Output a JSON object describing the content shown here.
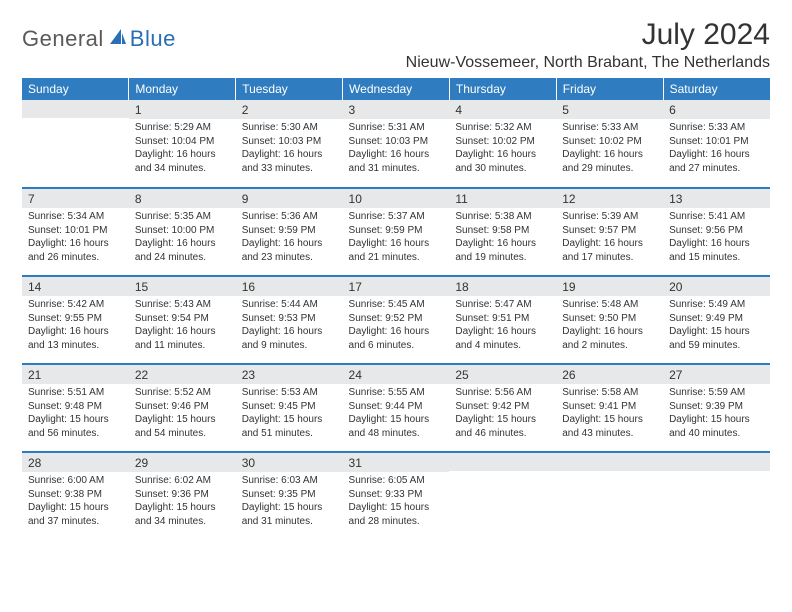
{
  "brand": {
    "word1": "General",
    "word2": "Blue",
    "accent_color": "#2a6fb5",
    "text_color": "#5a5a5a"
  },
  "title": "July 2024",
  "location": "Nieuw-Vossemeer, North Brabant, The Netherlands",
  "header_bg": "#2f7dc0",
  "header_fg": "#ffffff",
  "daynum_bg": "#e7e8e9",
  "row_border": "#2f7dc0",
  "weekdays": [
    "Sunday",
    "Monday",
    "Tuesday",
    "Wednesday",
    "Thursday",
    "Friday",
    "Saturday"
  ],
  "weeks": [
    [
      null,
      {
        "d": "1",
        "sr": "Sunrise: 5:29 AM",
        "ss": "Sunset: 10:04 PM",
        "dl1": "Daylight: 16 hours",
        "dl2": "and 34 minutes."
      },
      {
        "d": "2",
        "sr": "Sunrise: 5:30 AM",
        "ss": "Sunset: 10:03 PM",
        "dl1": "Daylight: 16 hours",
        "dl2": "and 33 minutes."
      },
      {
        "d": "3",
        "sr": "Sunrise: 5:31 AM",
        "ss": "Sunset: 10:03 PM",
        "dl1": "Daylight: 16 hours",
        "dl2": "and 31 minutes."
      },
      {
        "d": "4",
        "sr": "Sunrise: 5:32 AM",
        "ss": "Sunset: 10:02 PM",
        "dl1": "Daylight: 16 hours",
        "dl2": "and 30 minutes."
      },
      {
        "d": "5",
        "sr": "Sunrise: 5:33 AM",
        "ss": "Sunset: 10:02 PM",
        "dl1": "Daylight: 16 hours",
        "dl2": "and 29 minutes."
      },
      {
        "d": "6",
        "sr": "Sunrise: 5:33 AM",
        "ss": "Sunset: 10:01 PM",
        "dl1": "Daylight: 16 hours",
        "dl2": "and 27 minutes."
      }
    ],
    [
      {
        "d": "7",
        "sr": "Sunrise: 5:34 AM",
        "ss": "Sunset: 10:01 PM",
        "dl1": "Daylight: 16 hours",
        "dl2": "and 26 minutes."
      },
      {
        "d": "8",
        "sr": "Sunrise: 5:35 AM",
        "ss": "Sunset: 10:00 PM",
        "dl1": "Daylight: 16 hours",
        "dl2": "and 24 minutes."
      },
      {
        "d": "9",
        "sr": "Sunrise: 5:36 AM",
        "ss": "Sunset: 9:59 PM",
        "dl1": "Daylight: 16 hours",
        "dl2": "and 23 minutes."
      },
      {
        "d": "10",
        "sr": "Sunrise: 5:37 AM",
        "ss": "Sunset: 9:59 PM",
        "dl1": "Daylight: 16 hours",
        "dl2": "and 21 minutes."
      },
      {
        "d": "11",
        "sr": "Sunrise: 5:38 AM",
        "ss": "Sunset: 9:58 PM",
        "dl1": "Daylight: 16 hours",
        "dl2": "and 19 minutes."
      },
      {
        "d": "12",
        "sr": "Sunrise: 5:39 AM",
        "ss": "Sunset: 9:57 PM",
        "dl1": "Daylight: 16 hours",
        "dl2": "and 17 minutes."
      },
      {
        "d": "13",
        "sr": "Sunrise: 5:41 AM",
        "ss": "Sunset: 9:56 PM",
        "dl1": "Daylight: 16 hours",
        "dl2": "and 15 minutes."
      }
    ],
    [
      {
        "d": "14",
        "sr": "Sunrise: 5:42 AM",
        "ss": "Sunset: 9:55 PM",
        "dl1": "Daylight: 16 hours",
        "dl2": "and 13 minutes."
      },
      {
        "d": "15",
        "sr": "Sunrise: 5:43 AM",
        "ss": "Sunset: 9:54 PM",
        "dl1": "Daylight: 16 hours",
        "dl2": "and 11 minutes."
      },
      {
        "d": "16",
        "sr": "Sunrise: 5:44 AM",
        "ss": "Sunset: 9:53 PM",
        "dl1": "Daylight: 16 hours",
        "dl2": "and 9 minutes."
      },
      {
        "d": "17",
        "sr": "Sunrise: 5:45 AM",
        "ss": "Sunset: 9:52 PM",
        "dl1": "Daylight: 16 hours",
        "dl2": "and 6 minutes."
      },
      {
        "d": "18",
        "sr": "Sunrise: 5:47 AM",
        "ss": "Sunset: 9:51 PM",
        "dl1": "Daylight: 16 hours",
        "dl2": "and 4 minutes."
      },
      {
        "d": "19",
        "sr": "Sunrise: 5:48 AM",
        "ss": "Sunset: 9:50 PM",
        "dl1": "Daylight: 16 hours",
        "dl2": "and 2 minutes."
      },
      {
        "d": "20",
        "sr": "Sunrise: 5:49 AM",
        "ss": "Sunset: 9:49 PM",
        "dl1": "Daylight: 15 hours",
        "dl2": "and 59 minutes."
      }
    ],
    [
      {
        "d": "21",
        "sr": "Sunrise: 5:51 AM",
        "ss": "Sunset: 9:48 PM",
        "dl1": "Daylight: 15 hours",
        "dl2": "and 56 minutes."
      },
      {
        "d": "22",
        "sr": "Sunrise: 5:52 AM",
        "ss": "Sunset: 9:46 PM",
        "dl1": "Daylight: 15 hours",
        "dl2": "and 54 minutes."
      },
      {
        "d": "23",
        "sr": "Sunrise: 5:53 AM",
        "ss": "Sunset: 9:45 PM",
        "dl1": "Daylight: 15 hours",
        "dl2": "and 51 minutes."
      },
      {
        "d": "24",
        "sr": "Sunrise: 5:55 AM",
        "ss": "Sunset: 9:44 PM",
        "dl1": "Daylight: 15 hours",
        "dl2": "and 48 minutes."
      },
      {
        "d": "25",
        "sr": "Sunrise: 5:56 AM",
        "ss": "Sunset: 9:42 PM",
        "dl1": "Daylight: 15 hours",
        "dl2": "and 46 minutes."
      },
      {
        "d": "26",
        "sr": "Sunrise: 5:58 AM",
        "ss": "Sunset: 9:41 PM",
        "dl1": "Daylight: 15 hours",
        "dl2": "and 43 minutes."
      },
      {
        "d": "27",
        "sr": "Sunrise: 5:59 AM",
        "ss": "Sunset: 9:39 PM",
        "dl1": "Daylight: 15 hours",
        "dl2": "and 40 minutes."
      }
    ],
    [
      {
        "d": "28",
        "sr": "Sunrise: 6:00 AM",
        "ss": "Sunset: 9:38 PM",
        "dl1": "Daylight: 15 hours",
        "dl2": "and 37 minutes."
      },
      {
        "d": "29",
        "sr": "Sunrise: 6:02 AM",
        "ss": "Sunset: 9:36 PM",
        "dl1": "Daylight: 15 hours",
        "dl2": "and 34 minutes."
      },
      {
        "d": "30",
        "sr": "Sunrise: 6:03 AM",
        "ss": "Sunset: 9:35 PM",
        "dl1": "Daylight: 15 hours",
        "dl2": "and 31 minutes."
      },
      {
        "d": "31",
        "sr": "Sunrise: 6:05 AM",
        "ss": "Sunset: 9:33 PM",
        "dl1": "Daylight: 15 hours",
        "dl2": "and 28 minutes."
      },
      null,
      null,
      null
    ]
  ]
}
